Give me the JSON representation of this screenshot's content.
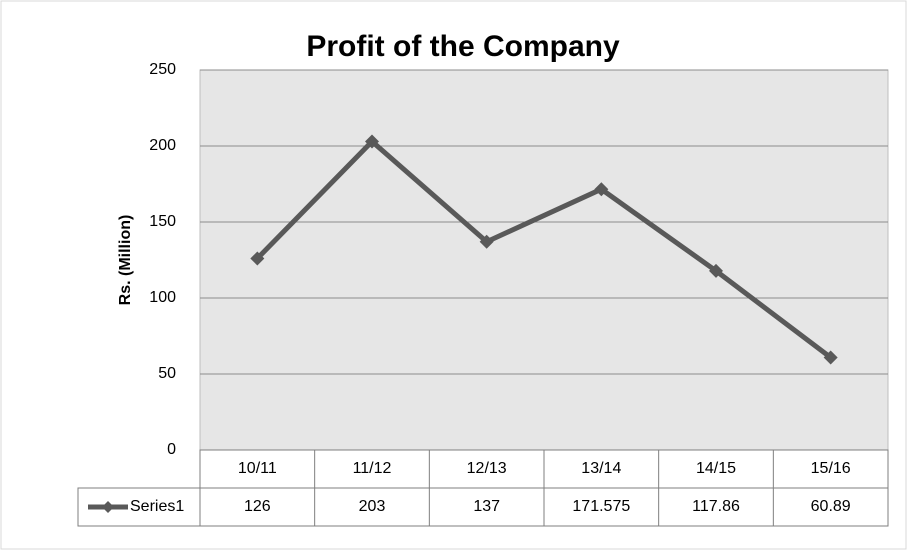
{
  "chart_data": {
    "type": "line",
    "title": "Profit of the Company",
    "ylabel": "Rs. (Million)",
    "categories": [
      "10/11",
      "11/12",
      "12/13",
      "13/14",
      "14/15",
      "15/16"
    ],
    "series": [
      {
        "name": "Series1",
        "color": "#595959",
        "values": [
          126,
          203,
          137,
          171.575,
          117.86,
          60.89
        ]
      }
    ],
    "ylim": [
      0,
      250
    ],
    "yticks": [
      0,
      50,
      100,
      150,
      200,
      250
    ],
    "grid": true,
    "data_table": true
  }
}
